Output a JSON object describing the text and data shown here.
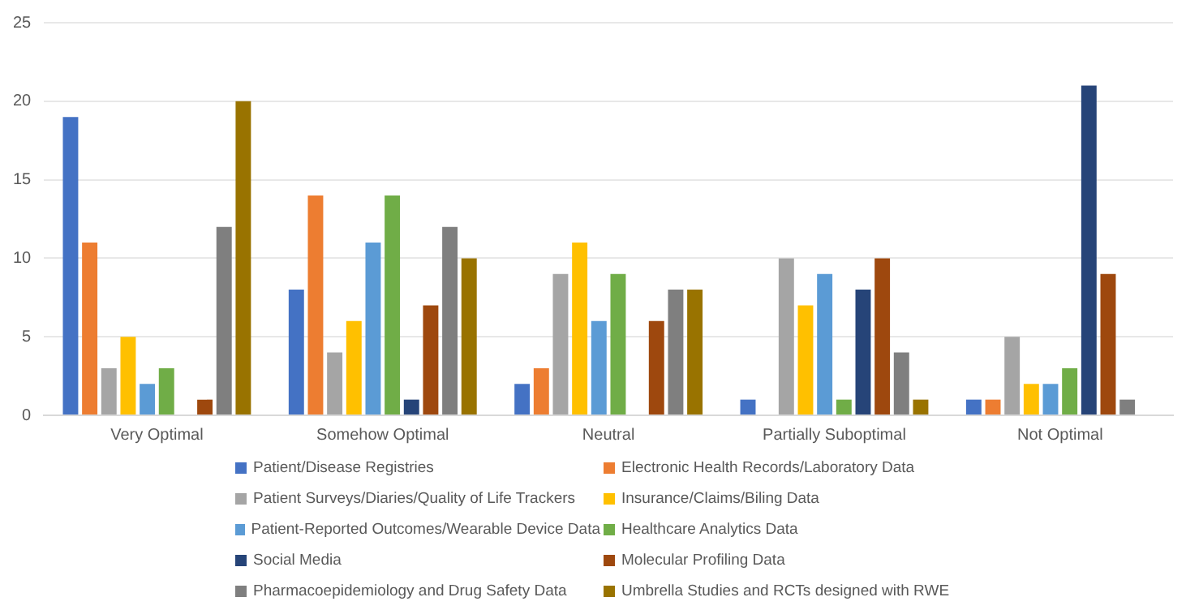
{
  "chart_data": {
    "type": "bar",
    "categories": [
      "Very Optimal",
      "Somehow Optimal",
      "Neutral",
      "Partially Suboptimal",
      "Not Optimal"
    ],
    "series": [
      {
        "name": "Patient/Disease Registries",
        "color": "#4472c4",
        "values": [
          19,
          8,
          2,
          1,
          1
        ]
      },
      {
        "name": "Electronic Health Records/Laboratory Data",
        "color": "#ed7d31",
        "values": [
          11,
          14,
          3,
          null,
          1
        ]
      },
      {
        "name": "Patient Surveys/Diaries/Quality of Life Trackers",
        "color": "#a5a5a5",
        "values": [
          3,
          4,
          9,
          10,
          5
        ]
      },
      {
        "name": "Insurance/Claims/Biling Data",
        "color": "#ffc000",
        "values": [
          5,
          6,
          11,
          7,
          2
        ]
      },
      {
        "name": "Patient-Reported Outcomes/Wearable Device Data",
        "color": "#5b9bd5",
        "values": [
          2,
          11,
          6,
          9,
          2
        ]
      },
      {
        "name": "Healthcare Analytics Data",
        "color": "#70ad47",
        "values": [
          3,
          14,
          9,
          1,
          3
        ]
      },
      {
        "name": "Social Media",
        "color": "#264478",
        "values": [
          null,
          1,
          null,
          8,
          21
        ]
      },
      {
        "name": "Molecular Profiling Data",
        "color": "#9e480e",
        "values": [
          1,
          7,
          6,
          10,
          9
        ]
      },
      {
        "name": "Pharmacoepidemiology and Drug Safety Data",
        "color": "#7f7f7f",
        "values": [
          12,
          12,
          8,
          4,
          1
        ]
      },
      {
        "name": "Umbrella Studies and RCTs designed with RWE",
        "color": "#997300",
        "values": [
          20,
          10,
          8,
          1,
          null
        ]
      }
    ],
    "ylim": [
      0,
      25
    ],
    "yticks": [
      0,
      5,
      10,
      15,
      20,
      25
    ],
    "grid": "y",
    "legend": "bottom"
  }
}
